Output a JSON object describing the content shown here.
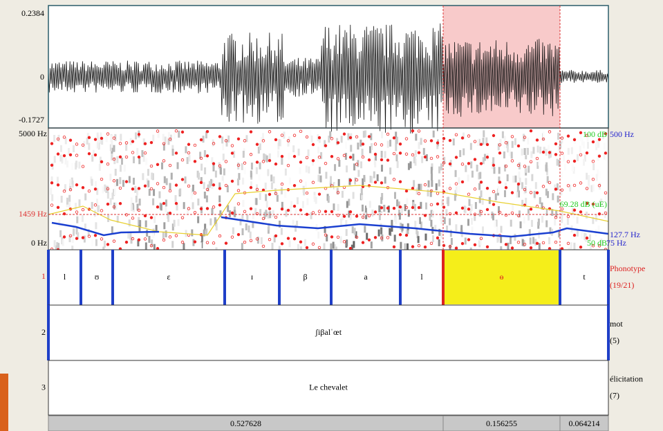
{
  "waveform": {
    "max_label": "0.2384",
    "zero_label": "0",
    "min_label": "-0.1727"
  },
  "spectrogram": {
    "top_label": "5000 Hz",
    "cursor_label": "1459 Hz",
    "bottom_label": "0 Hz",
    "intensity_max": "100 dB",
    "pitch_max": "500 Hz",
    "intensity_value": "69.28 dB (uE)",
    "pitch_value": "127.7 Hz",
    "intensity_min": "50 dB",
    "pitch_min": "75 Hz"
  },
  "tiers": [
    {
      "number": "1",
      "name": "Phonotype",
      "count": "(19/21)",
      "intervals": [
        "l",
        "ʊ",
        "ɛ",
        "ɪ",
        "β",
        "a",
        "l",
        "ɵ",
        "t"
      ]
    },
    {
      "number": "2",
      "name": "mot",
      "count": "(5)",
      "intervals": [
        "ʃiβalˈœt"
      ]
    },
    {
      "number": "3",
      "name": "élicitation",
      "count": "(7)",
      "intervals": [
        "Le chevalet"
      ]
    }
  ],
  "durations": [
    "0.527628",
    "0.156255",
    "0.064214"
  ]
}
